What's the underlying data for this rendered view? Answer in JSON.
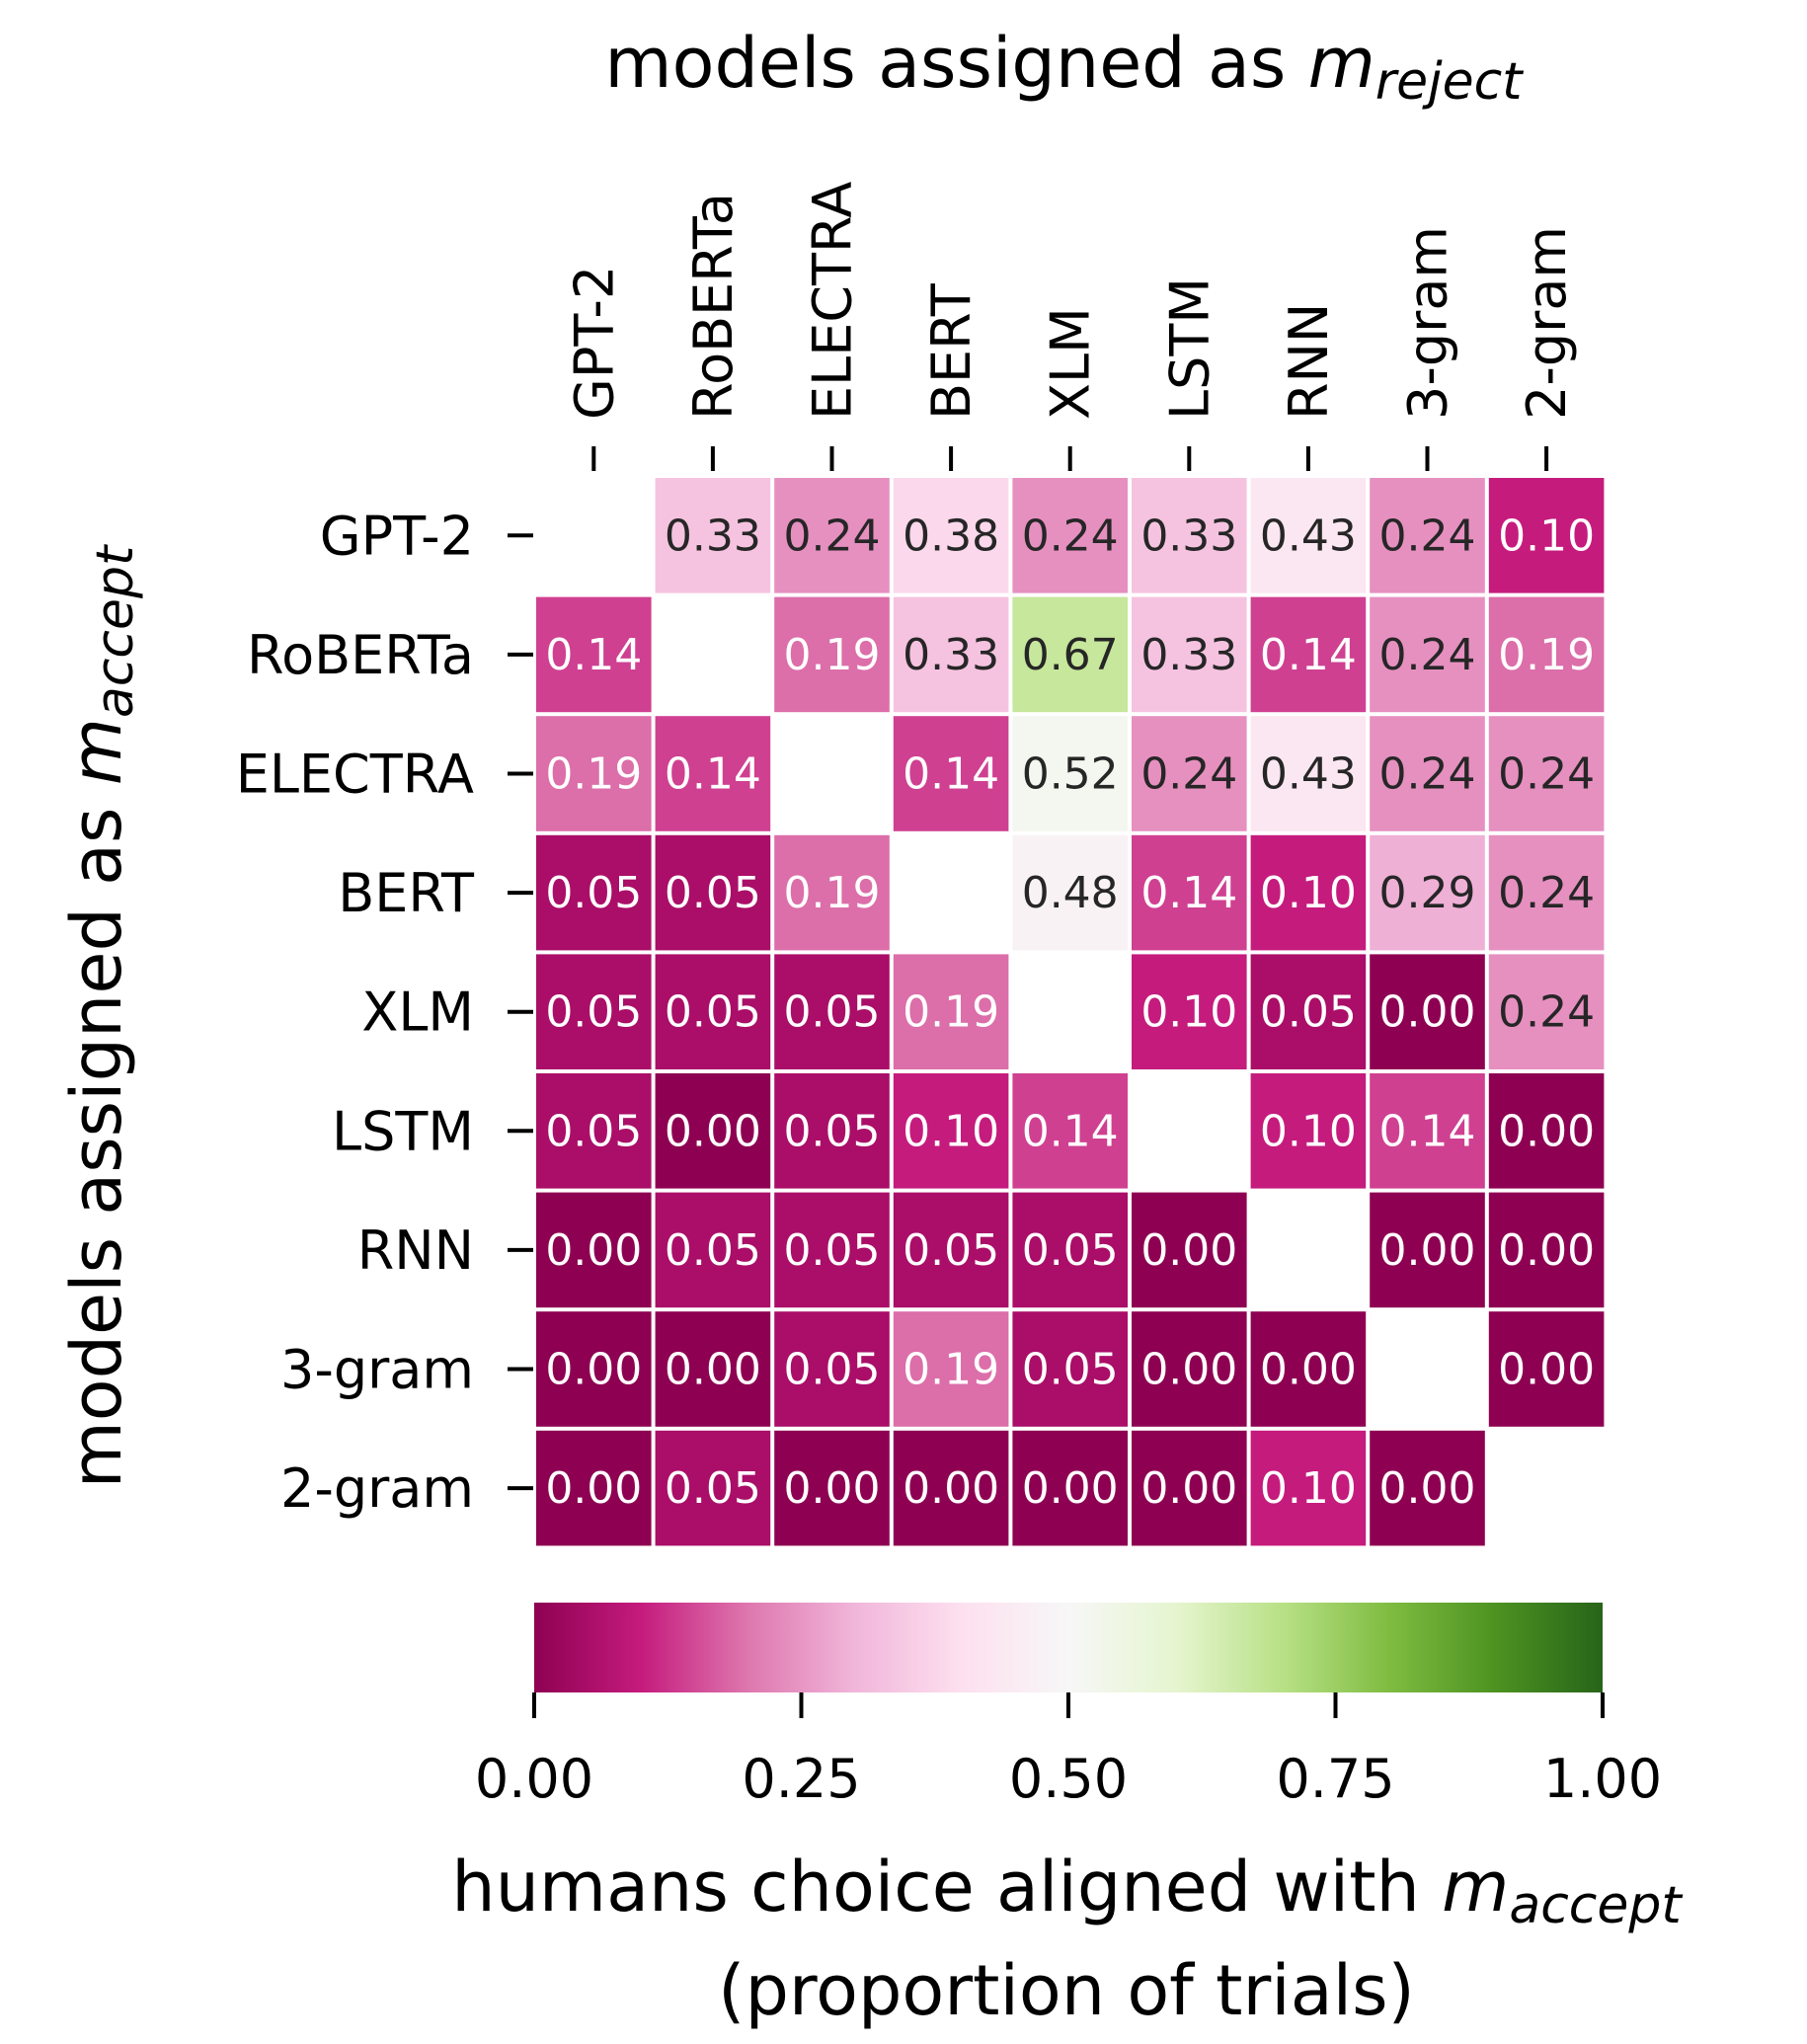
{
  "chart_data": {
    "type": "heatmap",
    "title": {
      "main": "models assigned as ",
      "math": "m",
      "sub": "reject"
    },
    "ylabel": {
      "main": "models assigned as ",
      "math": "m",
      "sub": "accept"
    },
    "colorbar_label": {
      "line1_main": "humans choice aligned with ",
      "math": "m",
      "sub": "accept",
      "line2": "(proportion of trials)"
    },
    "columns": [
      "GPT-2",
      "RoBERTa",
      "ELECTRA",
      "BERT",
      "XLM",
      "LSTM",
      "RNN",
      "3-gram",
      "2-gram"
    ],
    "rows": [
      "GPT-2",
      "RoBERTa",
      "ELECTRA",
      "BERT",
      "XLM",
      "LSTM",
      "RNN",
      "3-gram",
      "2-gram"
    ],
    "values": [
      [
        null,
        0.33,
        0.24,
        0.38,
        0.24,
        0.33,
        0.43,
        0.24,
        0.1
      ],
      [
        0.14,
        null,
        0.19,
        0.33,
        0.67,
        0.33,
        0.14,
        0.24,
        0.19
      ],
      [
        0.19,
        0.14,
        null,
        0.14,
        0.52,
        0.24,
        0.43,
        0.24,
        0.24
      ],
      [
        0.05,
        0.05,
        0.19,
        null,
        0.48,
        0.14,
        0.1,
        0.29,
        0.24
      ],
      [
        0.05,
        0.05,
        0.05,
        0.19,
        null,
        0.1,
        0.05,
        0.0,
        0.24
      ],
      [
        0.05,
        0.0,
        0.05,
        0.1,
        0.14,
        null,
        0.1,
        0.14,
        0.0
      ],
      [
        0.0,
        0.05,
        0.05,
        0.05,
        0.05,
        0.0,
        null,
        0.0,
        0.0
      ],
      [
        0.0,
        0.0,
        0.05,
        0.19,
        0.05,
        0.0,
        0.0,
        null,
        0.0
      ],
      [
        0.0,
        0.05,
        0.0,
        0.0,
        0.0,
        0.0,
        0.1,
        0.0,
        null
      ]
    ],
    "colorscale": "PiYG",
    "vmin": 0,
    "vmax": 1,
    "colorbar_ticks": [
      "0.00",
      "0.25",
      "0.50",
      "0.75",
      "1.00"
    ],
    "colorbar_position": "bottom"
  }
}
